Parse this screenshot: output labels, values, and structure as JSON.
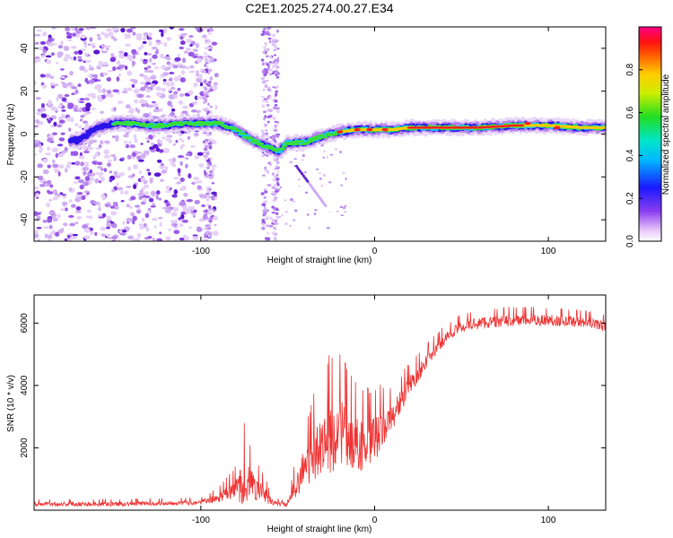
{
  "title": "C2E1.2025.274.00.27.E34",
  "chart_data": [
    {
      "type": "heatmap",
      "name": "spectrogram",
      "title": "C2E1.2025.274.00.27.E34",
      "xlabel": "Height of straight line (km)",
      "ylabel": "Frequency (Hz)",
      "xlim": [
        -196,
        133
      ],
      "ylim": [
        -50,
        50
      ],
      "xticks": [
        -100,
        0,
        100
      ],
      "xtick_labels": [
        "-100",
        "0",
        "100"
      ],
      "yticks": [
        -40,
        -20,
        0,
        20,
        40
      ],
      "ytick_labels": [
        "-40",
        "-20",
        "0",
        "20",
        "40"
      ],
      "ridge": {
        "x": [
          -170,
          -160,
          -150,
          -140,
          -130,
          -120,
          -110,
          -100,
          -90,
          -80,
          -70,
          -62,
          -55,
          -50,
          -40,
          -30,
          -20,
          -10,
          0,
          10,
          20,
          40,
          60,
          80,
          100,
          120,
          133
        ],
        "y": [
          -3,
          3,
          5,
          5,
          4,
          4,
          5,
          5,
          5,
          2,
          -3,
          -6,
          -8,
          -4,
          -4,
          -1,
          1,
          2,
          2,
          2,
          3,
          3,
          3,
          4,
          4,
          3,
          3
        ]
      },
      "colorbar": {
        "label": "Normalized spectral amplitude",
        "range": [
          0,
          1
        ],
        "ticks": [
          0.0,
          0.2,
          0.4,
          0.6,
          0.8
        ],
        "tick_labels": [
          "0.0",
          "0.2",
          "0.4",
          "0.6",
          "0.8"
        ]
      }
    },
    {
      "type": "line",
      "name": "snr",
      "xlabel": "Height of straight line (km)",
      "ylabel": "SNR (10 * v/v)",
      "xlim": [
        -196,
        133
      ],
      "ylim": [
        0,
        6900
      ],
      "xticks": [
        -100,
        0,
        100
      ],
      "xtick_labels": [
        "-100",
        "0",
        "100"
      ],
      "yticks": [
        2000,
        4000,
        6000
      ],
      "ytick_labels": [
        "2000",
        "4000",
        "6000"
      ],
      "color": "#ee3333",
      "envelope": {
        "x": [
          -196,
          -150,
          -100,
          -90,
          -80,
          -75,
          -70,
          -65,
          -60,
          -55,
          -50,
          -45,
          -40,
          -35,
          -30,
          -25,
          -20,
          -15,
          -10,
          -5,
          0,
          10,
          20,
          30,
          40,
          50,
          60,
          80,
          100,
          120,
          133
        ],
        "base": [
          200,
          200,
          250,
          400,
          700,
          1000,
          800,
          600,
          300,
          200,
          180,
          900,
          1400,
          1800,
          2200,
          2400,
          2700,
          2300,
          2200,
          2000,
          2300,
          3000,
          4000,
          4800,
          5500,
          5900,
          6000,
          6100,
          6100,
          6050,
          5900
        ],
        "amplitude": [
          150,
          150,
          150,
          300,
          700,
          1800,
          900,
          700,
          300,
          150,
          150,
          900,
          1400,
          1800,
          2000,
          2600,
          2400,
          2000,
          1800,
          1800,
          1600,
          900,
          700,
          500,
          400,
          400,
          400,
          400,
          400,
          350,
          350
        ]
      }
    }
  ]
}
